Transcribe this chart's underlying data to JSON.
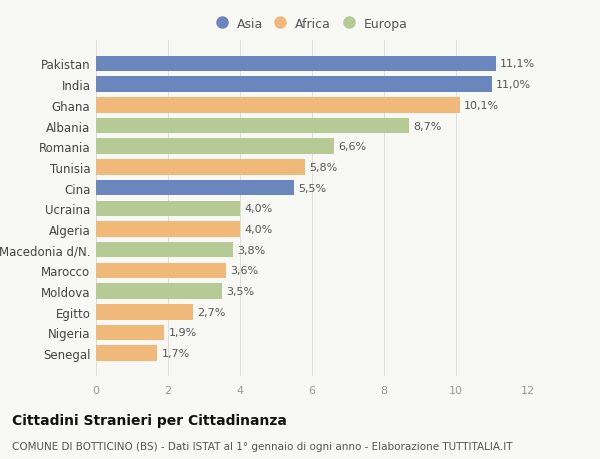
{
  "countries": [
    "Senegal",
    "Nigeria",
    "Egitto",
    "Moldova",
    "Marocco",
    "Macedonia d/N.",
    "Algeria",
    "Ucraina",
    "Cina",
    "Tunisia",
    "Romania",
    "Albania",
    "Ghana",
    "India",
    "Pakistan"
  ],
  "values": [
    1.7,
    1.9,
    2.7,
    3.5,
    3.6,
    3.8,
    4.0,
    4.0,
    5.5,
    5.8,
    6.6,
    8.7,
    10.1,
    11.0,
    11.1
  ],
  "labels": [
    "1,7%",
    "1,9%",
    "2,7%",
    "3,5%",
    "3,6%",
    "3,8%",
    "4,0%",
    "4,0%",
    "5,5%",
    "5,8%",
    "6,6%",
    "8,7%",
    "10,1%",
    "11,0%",
    "11,1%"
  ],
  "continents": [
    "Africa",
    "Africa",
    "Africa",
    "Europa",
    "Africa",
    "Europa",
    "Africa",
    "Europa",
    "Asia",
    "Africa",
    "Europa",
    "Europa",
    "Africa",
    "Asia",
    "Asia"
  ],
  "colors": {
    "Asia": "#6b86bc",
    "Africa": "#f0b97a",
    "Europa": "#b5ca95"
  },
  "legend_labels": [
    "Asia",
    "Africa",
    "Europa"
  ],
  "title": "Cittadini Stranieri per Cittadinanza",
  "subtitle": "COMUNE DI BOTTICINO (BS) - Dati ISTAT al 1° gennaio di ogni anno - Elaborazione TUTTITALIA.IT",
  "xlim": [
    0,
    12
  ],
  "xticks": [
    0,
    2,
    4,
    6,
    8,
    10,
    12
  ],
  "background_color": "#f8f8f4",
  "bar_height": 0.75,
  "title_fontsize": 10,
  "subtitle_fontsize": 7.5,
  "label_fontsize": 8,
  "tick_fontsize": 8,
  "legend_fontsize": 9,
  "ylabel_fontsize": 8.5
}
